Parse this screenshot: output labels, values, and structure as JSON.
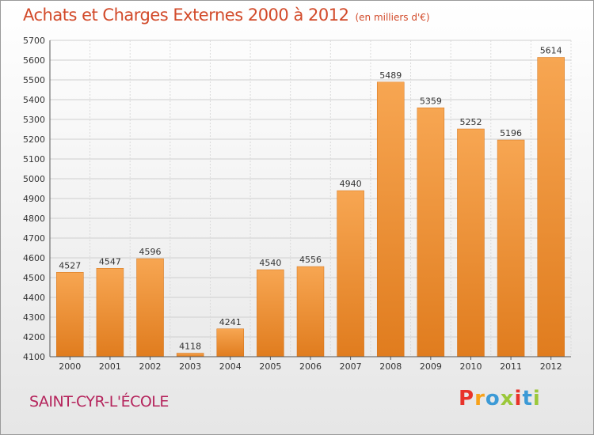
{
  "header": {
    "title": "Achats et Charges Externes 2000 à 2012",
    "unit": "(en milliers d'€)"
  },
  "footer": {
    "place": "SAINT-CYR-L'ÉCOLE",
    "brand": "Proxiti",
    "brand_colors": [
      "#e8332a",
      "#f7a21b",
      "#3c9ad6",
      "#9bc83a",
      "#e8332a",
      "#3c9ad6",
      "#9bc83a"
    ]
  },
  "chart_data": {
    "type": "bar",
    "categories": [
      "2000",
      "2001",
      "2002",
      "2003",
      "2004",
      "2005",
      "2006",
      "2007",
      "2008",
      "2009",
      "2010",
      "2011",
      "2012"
    ],
    "values": [
      4527,
      4547,
      4596,
      4118,
      4241,
      4540,
      4556,
      4940,
      5489,
      5359,
      5252,
      5196,
      5614
    ],
    "ylim": [
      4100,
      5700
    ],
    "yticks": [
      4100,
      4200,
      4300,
      4400,
      4500,
      4600,
      4700,
      4800,
      4900,
      5000,
      5100,
      5200,
      5300,
      5400,
      5500,
      5600,
      5700
    ],
    "grid": true,
    "bar_color": "#f3a04a"
  }
}
